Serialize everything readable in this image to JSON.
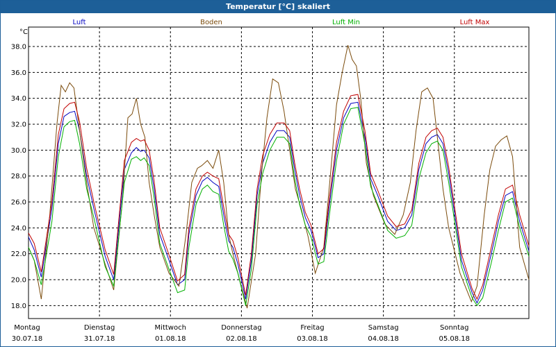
{
  "window": {
    "title": "Temperatur [°C] skaliert"
  },
  "chart_data": {
    "type": "line",
    "unit_label": "°C",
    "ylim": [
      17,
      39.5
    ],
    "yticks": [
      18.0,
      20.0,
      22.0,
      24.0,
      26.0,
      28.0,
      30.0,
      32.0,
      34.0,
      36.0,
      38.0
    ],
    "xlim": [
      0,
      7.05
    ],
    "grid": true,
    "legend_position": "top",
    "days": [
      {
        "weekday": "Montag",
        "date": "30.07.18"
      },
      {
        "weekday": "Dienstag",
        "date": "31.07.18"
      },
      {
        "weekday": "Mittwoch",
        "date": "01.08.18"
      },
      {
        "weekday": "Donnerstag",
        "date": "02.08.18"
      },
      {
        "weekday": "Freitag",
        "date": "03.08.18"
      },
      {
        "weekday": "Samstag",
        "date": "04.08.18"
      },
      {
        "weekday": "Sonntag",
        "date": "05.08.18"
      }
    ],
    "series": [
      {
        "name": "Luft",
        "color": "#0000c0",
        "x": [
          0,
          0.08,
          0.18,
          0.33,
          0.42,
          0.5,
          0.58,
          0.65,
          0.72,
          0.82,
          0.92,
          1.08,
          1.2,
          1.35,
          1.45,
          1.52,
          1.58,
          1.63,
          1.7,
          1.77,
          1.85,
          1.98,
          2.1,
          2.2,
          2.26,
          2.36,
          2.45,
          2.52,
          2.6,
          2.68,
          2.75,
          2.82,
          2.88,
          2.95,
          3.06,
          3.14,
          3.22,
          3.3,
          3.4,
          3.5,
          3.6,
          3.68,
          3.75,
          3.82,
          3.9,
          3.98,
          4.08,
          4.16,
          4.24,
          4.34,
          4.44,
          4.54,
          4.64,
          4.74,
          4.82,
          4.92,
          5.06,
          5.18,
          5.3,
          5.4,
          5.5,
          5.6,
          5.68,
          5.76,
          5.84,
          5.92,
          6.1,
          6.25,
          6.32,
          6.4,
          6.52,
          6.62,
          6.72,
          6.82,
          6.92,
          7.05
        ],
        "values": [
          23.3,
          22.3,
          20.2,
          25.5,
          30.5,
          32.6,
          32.9,
          33.0,
          31.5,
          28.0,
          25.5,
          21.8,
          20.0,
          28.5,
          29.8,
          30.2,
          29.9,
          30.0,
          29.4,
          27.0,
          23.5,
          21.5,
          19.6,
          20.0,
          23.5,
          26.5,
          27.6,
          27.9,
          27.5,
          27.2,
          25.0,
          23.0,
          22.5,
          21.2,
          18.5,
          21.5,
          26.5,
          29.0,
          30.6,
          31.5,
          31.5,
          31.0,
          28.5,
          26.5,
          24.8,
          23.8,
          21.7,
          22.0,
          25.8,
          30.0,
          32.5,
          33.6,
          33.7,
          31.0,
          27.8,
          26.5,
          24.5,
          23.8,
          24.0,
          25.0,
          28.5,
          30.5,
          31.0,
          31.2,
          30.5,
          28.2,
          21.5,
          19.0,
          18.2,
          19.2,
          22.0,
          24.5,
          26.5,
          26.8,
          24.5,
          22.2
        ]
      },
      {
        "name": "Boden",
        "color": "#7a4a0a",
        "x": [
          0,
          0.08,
          0.18,
          0.3,
          0.4,
          0.46,
          0.52,
          0.58,
          0.64,
          0.72,
          0.82,
          0.92,
          1.08,
          1.2,
          1.33,
          1.4,
          1.46,
          1.52,
          1.58,
          1.64,
          1.7,
          1.77,
          1.85,
          1.98,
          2.12,
          2.22,
          2.3,
          2.38,
          2.44,
          2.52,
          2.6,
          2.68,
          2.75,
          2.82,
          2.88,
          2.95,
          3.08,
          3.2,
          3.28,
          3.36,
          3.44,
          3.52,
          3.6,
          3.68,
          3.76,
          3.84,
          3.94,
          4.04,
          4.16,
          4.26,
          4.34,
          4.42,
          4.5,
          4.56,
          4.62,
          4.68,
          4.76,
          4.86,
          5.02,
          5.16,
          5.28,
          5.38,
          5.46,
          5.54,
          5.62,
          5.7,
          5.76,
          5.84,
          5.92,
          6.08,
          6.24,
          6.32,
          6.42,
          6.5,
          6.58,
          6.66,
          6.74,
          6.82,
          6.92,
          7.05
        ],
        "values": [
          22.5,
          21.5,
          18.5,
          25.0,
          32.0,
          35.0,
          34.5,
          35.2,
          34.8,
          31.5,
          27.5,
          24.0,
          21.2,
          19.2,
          26.5,
          32.5,
          32.8,
          34.0,
          32.0,
          31.0,
          27.5,
          25.0,
          22.5,
          20.5,
          19.5,
          23.5,
          27.5,
          28.6,
          28.8,
          29.2,
          28.6,
          30.0,
          27.5,
          23.5,
          22.0,
          20.5,
          17.8,
          22.0,
          28.0,
          32.5,
          35.5,
          35.2,
          33.0,
          30.0,
          27.0,
          25.5,
          23.3,
          20.5,
          22.5,
          28.5,
          33.5,
          36.0,
          38.1,
          37.0,
          36.5,
          34.0,
          29.0,
          26.5,
          24.3,
          23.5,
          25.0,
          27.5,
          31.5,
          34.5,
          34.8,
          34.0,
          31.0,
          27.0,
          24.0,
          20.5,
          18.3,
          19.5,
          25.0,
          28.5,
          30.3,
          30.8,
          31.1,
          29.5,
          22.5,
          20.0
        ]
      },
      {
        "name": "Luft Min",
        "color": "#00b000",
        "x": [
          0,
          0.08,
          0.18,
          0.33,
          0.42,
          0.5,
          0.58,
          0.65,
          0.72,
          0.82,
          0.92,
          1.08,
          1.2,
          1.35,
          1.45,
          1.52,
          1.58,
          1.63,
          1.7,
          1.77,
          1.85,
          1.98,
          2.1,
          2.2,
          2.26,
          2.36,
          2.45,
          2.52,
          2.6,
          2.68,
          2.75,
          2.82,
          2.88,
          2.95,
          3.06,
          3.14,
          3.22,
          3.3,
          3.4,
          3.5,
          3.6,
          3.68,
          3.75,
          3.82,
          3.9,
          3.98,
          4.08,
          4.16,
          4.24,
          4.34,
          4.44,
          4.54,
          4.64,
          4.74,
          4.82,
          4.92,
          5.06,
          5.18,
          5.3,
          5.4,
          5.5,
          5.6,
          5.68,
          5.76,
          5.84,
          5.92,
          6.1,
          6.25,
          6.32,
          6.4,
          6.52,
          6.62,
          6.72,
          6.82,
          6.92,
          7.05
        ],
        "values": [
          22.5,
          21.5,
          19.6,
          24.5,
          29.5,
          31.8,
          32.2,
          32.3,
          30.5,
          27.0,
          24.8,
          21.0,
          19.5,
          27.5,
          29.3,
          29.5,
          29.2,
          29.4,
          28.8,
          26.3,
          22.8,
          20.8,
          19.0,
          19.2,
          22.5,
          25.8,
          27.0,
          27.3,
          26.8,
          26.6,
          24.2,
          22.2,
          21.6,
          20.5,
          18.0,
          20.8,
          25.8,
          28.2,
          30.0,
          31.0,
          31.0,
          30.5,
          27.8,
          25.8,
          24.2,
          23.3,
          21.2,
          21.4,
          25.0,
          29.2,
          32.0,
          33.2,
          33.3,
          30.4,
          27.2,
          25.8,
          23.8,
          23.2,
          23.4,
          24.2,
          27.8,
          29.8,
          30.5,
          30.7,
          30.0,
          27.5,
          21.0,
          18.6,
          18.0,
          18.6,
          21.3,
          23.8,
          26.0,
          26.3,
          24.0,
          21.8
        ]
      },
      {
        "name": "Luft Max",
        "color": "#c00000",
        "x": [
          0,
          0.08,
          0.18,
          0.33,
          0.42,
          0.5,
          0.58,
          0.65,
          0.72,
          0.82,
          0.92,
          1.08,
          1.2,
          1.35,
          1.45,
          1.52,
          1.58,
          1.63,
          1.7,
          1.77,
          1.85,
          1.98,
          2.1,
          2.2,
          2.26,
          2.36,
          2.45,
          2.52,
          2.6,
          2.68,
          2.75,
          2.82,
          2.88,
          2.95,
          3.06,
          3.14,
          3.22,
          3.3,
          3.4,
          3.5,
          3.6,
          3.68,
          3.75,
          3.82,
          3.9,
          3.98,
          4.08,
          4.16,
          4.24,
          4.34,
          4.44,
          4.54,
          4.64,
          4.74,
          4.82,
          4.92,
          5.06,
          5.18,
          5.3,
          5.4,
          5.5,
          5.6,
          5.68,
          5.76,
          5.84,
          5.92,
          6.1,
          6.25,
          6.32,
          6.4,
          6.52,
          6.62,
          6.72,
          6.82,
          6.92,
          7.05
        ],
        "values": [
          23.6,
          22.8,
          20.6,
          26.0,
          31.2,
          33.2,
          33.6,
          33.7,
          32.2,
          28.6,
          26.0,
          22.3,
          20.4,
          29.2,
          30.6,
          30.9,
          30.7,
          30.8,
          30.0,
          27.6,
          24.0,
          21.9,
          19.9,
          20.4,
          24.0,
          27.0,
          28.0,
          28.3,
          28.0,
          27.8,
          25.6,
          23.5,
          23.0,
          21.7,
          18.8,
          22.0,
          27.0,
          29.6,
          31.2,
          32.1,
          32.1,
          31.5,
          29.0,
          27.0,
          25.2,
          24.2,
          22.0,
          22.4,
          26.3,
          30.6,
          33.0,
          34.2,
          34.3,
          31.5,
          28.2,
          26.9,
          24.9,
          24.1,
          24.3,
          25.4,
          29.0,
          31.0,
          31.5,
          31.7,
          31.0,
          28.7,
          22.0,
          19.3,
          18.5,
          19.6,
          22.5,
          25.0,
          27.0,
          27.3,
          25.0,
          22.6
        ]
      }
    ]
  }
}
